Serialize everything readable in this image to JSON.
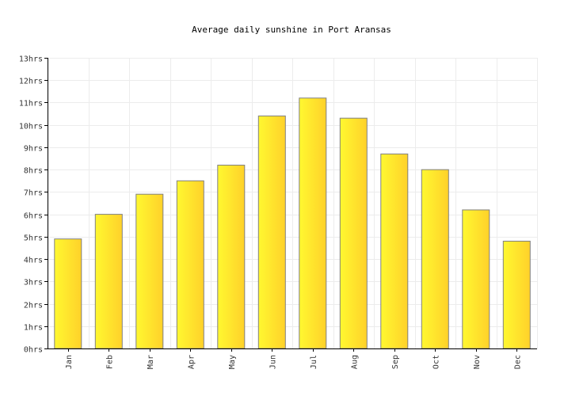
{
  "chart_data": {
    "type": "bar",
    "title": "Average daily sunshine in Port Aransas",
    "xlabel": "",
    "ylabel": "",
    "categories": [
      "Jan",
      "Feb",
      "Mar",
      "Apr",
      "May",
      "Jun",
      "Jul",
      "Aug",
      "Sep",
      "Oct",
      "Nov",
      "Dec"
    ],
    "values": [
      4.9,
      6.0,
      6.9,
      7.5,
      8.2,
      10.4,
      11.2,
      10.3,
      8.7,
      8.0,
      6.2,
      4.8
    ],
    "ylim": [
      0,
      13
    ],
    "yticks": [
      "0hrs",
      "1hrs",
      "2hrs",
      "3hrs",
      "4hrs",
      "5hrs",
      "6hrs",
      "7hrs",
      "8hrs",
      "9hrs",
      "10hrs",
      "11hrs",
      "12hrs",
      "13hrs"
    ],
    "grid": true,
    "legend": "none",
    "colors": {
      "bar_light": "#fff830",
      "bar_dark": "#ffd12a",
      "bar_border": "#808080",
      "grid": "#ececec",
      "axis": "#000000"
    }
  }
}
